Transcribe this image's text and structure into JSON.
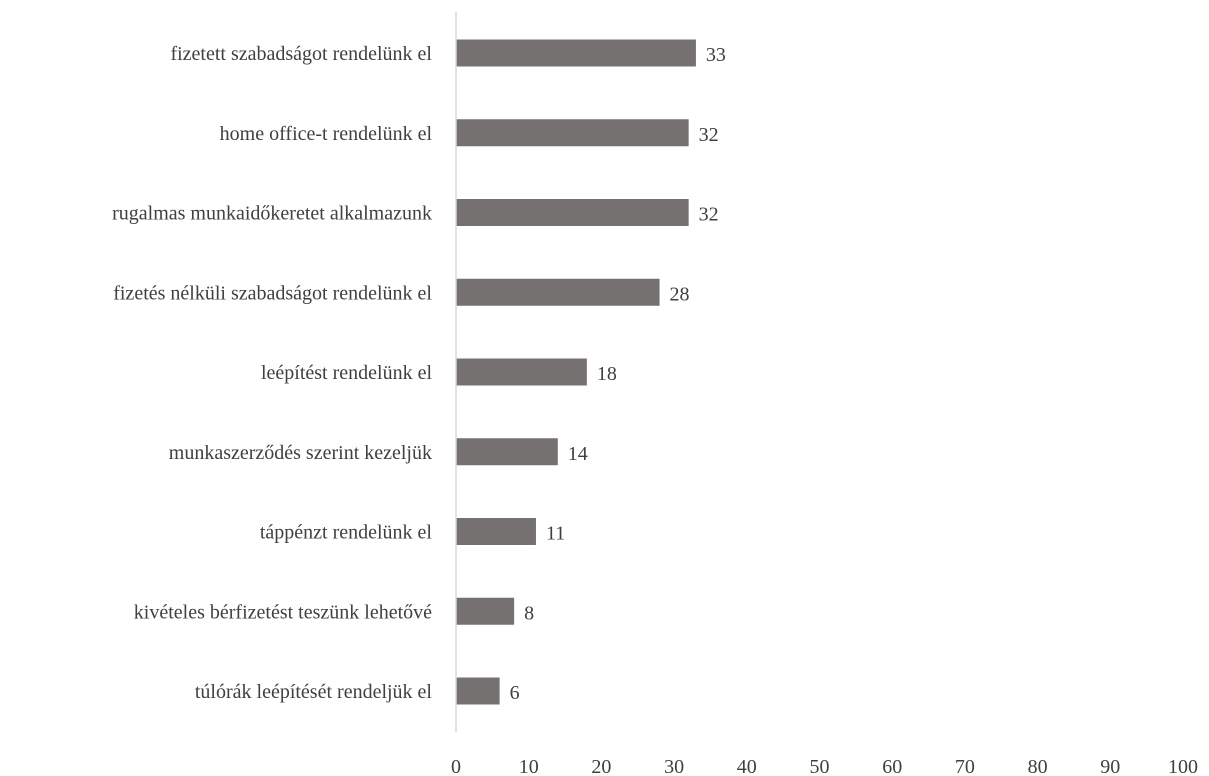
{
  "chart_data": {
    "type": "bar",
    "orientation": "horizontal",
    "categories": [
      "fizetett szabadságot rendelünk el",
      "home office-t rendelünk el",
      "rugalmas munkaidőkeretet alkalmazunk",
      "fizetés nélküli szabadságot rendelünk el",
      "leépítést rendelünk el",
      "munkaszerződés szerint kezeljük",
      "táppénzt rendelünk el",
      "kivételes bérfizetést teszünk lehetővé",
      "túlórák leépítését rendeljük el"
    ],
    "values": [
      33,
      32,
      32,
      28,
      18,
      14,
      11,
      8,
      6
    ],
    "xlim": [
      0,
      100
    ],
    "xticks": [
      "0",
      "10",
      "20",
      "30",
      "40",
      "50",
      "60",
      "70",
      "80",
      "90",
      "100"
    ],
    "title": "",
    "xlabel": "",
    "ylabel": "",
    "grid": false,
    "legend": "none",
    "data_labels": true,
    "colors": {
      "bar": "#767171",
      "axis": "#d9d9d9",
      "text": "#404040"
    }
  }
}
